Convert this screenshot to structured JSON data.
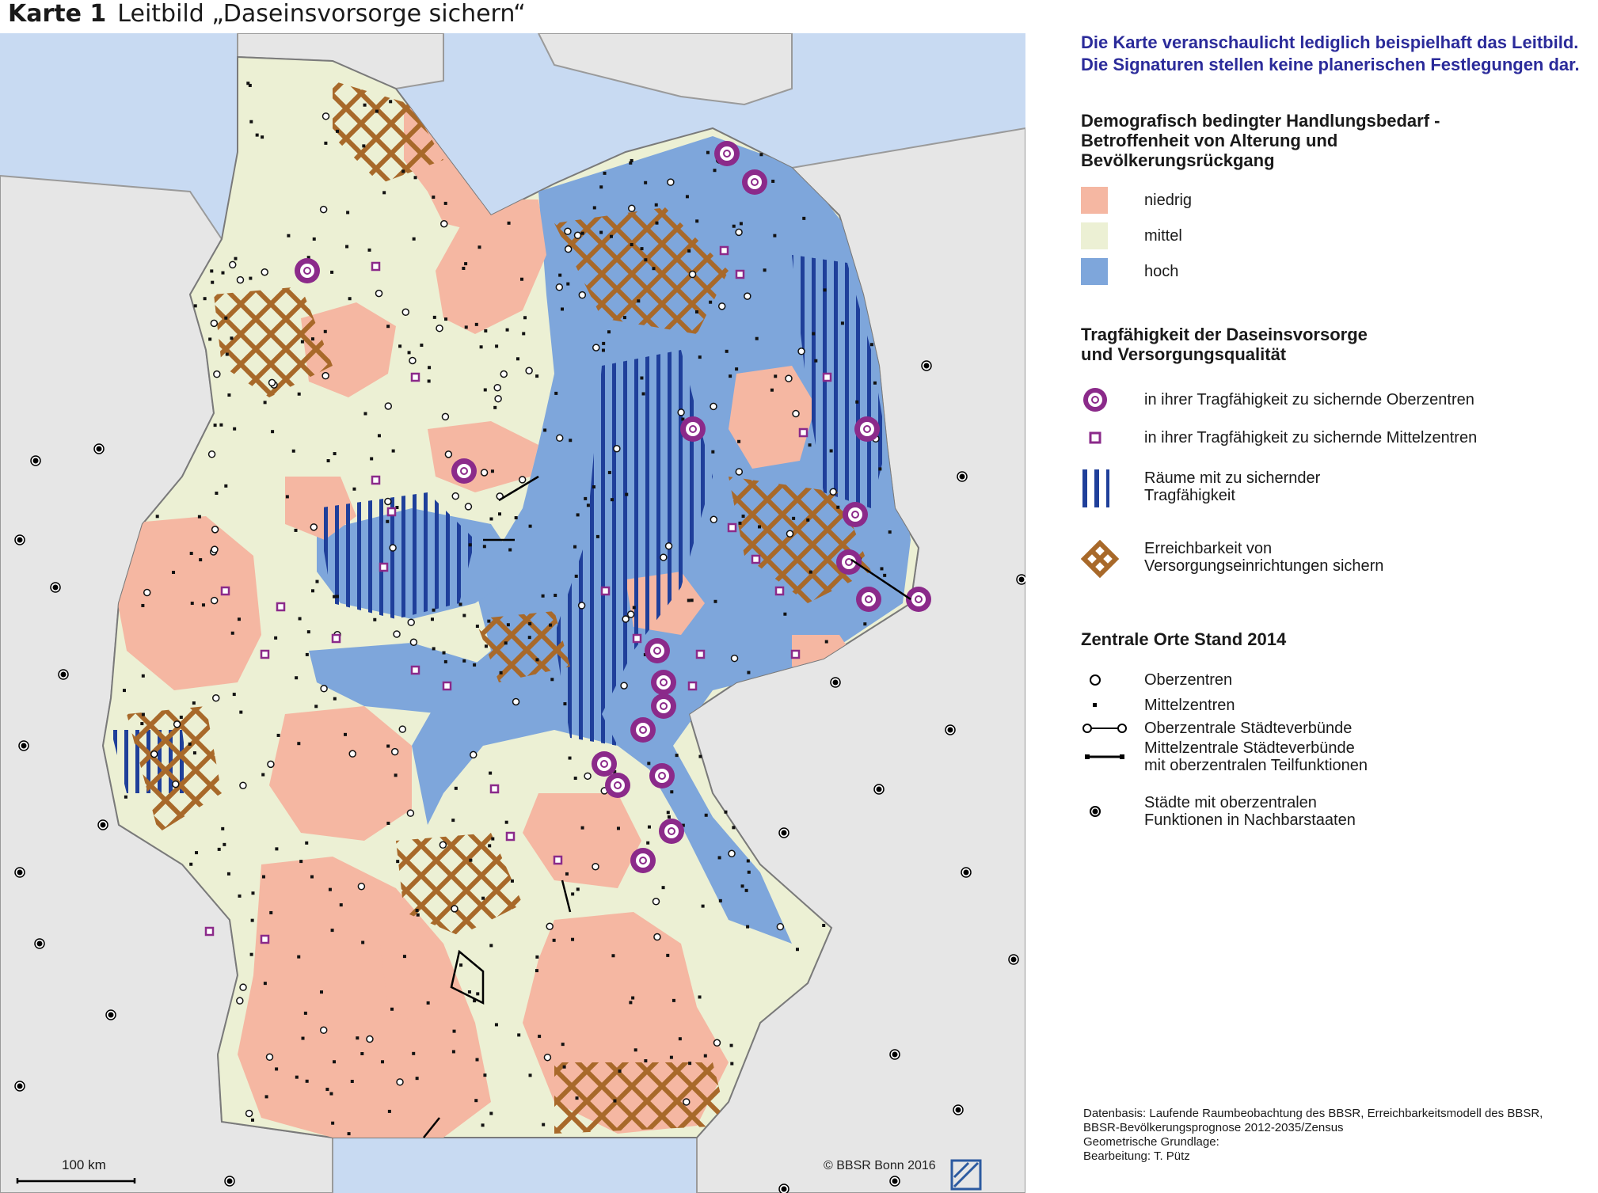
{
  "title": {
    "number": "Karte 1",
    "text": "Leitbild „Daseinsvorsorge sichern“"
  },
  "note": [
    "Die Karte veranschaulicht lediglich beispielhaft das Leitbild.",
    "Die Signaturen stellen keine planerischen Festlegungen dar."
  ],
  "legend": {
    "section1": {
      "heading": [
        "Demografisch bedingter Handlungsbedarf -",
        "Betroffenheit von Alterung und",
        "Bevölkerungsrückgang"
      ],
      "items": [
        {
          "label": "niedrig",
          "color": "#f5b7a2"
        },
        {
          "label": "mittel",
          "color": "#ecf0d4"
        },
        {
          "label": "hoch",
          "color": "#7ea6db"
        }
      ]
    },
    "section2": {
      "heading": [
        "Tragfähigkeit der Daseinsvorsorge",
        "und Versorgungsqualität"
      ],
      "items": [
        {
          "label": [
            "in ihrer Tragfähigkeit zu sichernde Oberzentren"
          ],
          "icon": "purple-ring-icon"
        },
        {
          "label": [
            "in ihrer Tragfähigkeit zu sichernde Mittelzentren"
          ],
          "icon": "purple-square-icon"
        },
        {
          "label": [
            "Räume mit zu sichernder",
            "Tragfähigkeit"
          ],
          "icon": "blue-stripes-icon"
        },
        {
          "label": [
            "Erreichbarkeit von",
            "Versorgungseinrichtungen sichern"
          ],
          "icon": "brown-crosshatch-icon"
        }
      ]
    },
    "section3": {
      "heading": [
        "Zentrale Orte Stand 2014"
      ],
      "items": [
        {
          "label": [
            "Oberzentren"
          ],
          "icon": "white-circle-icon"
        },
        {
          "label": [
            "Mittelzentren"
          ],
          "icon": "black-square-icon"
        },
        {
          "label": [
            "Oberzentrale Städteverbünde"
          ],
          "icon": "circle-link-icon"
        },
        {
          "label": [
            "Mittelzentrale Städteverbünde",
            "mit oberzentralen Teilfunktionen"
          ],
          "icon": "square-link-icon"
        },
        {
          "label": [
            "Städte mit oberzentralen",
            "Funktionen in Nachbarstaaten"
          ],
          "icon": "black-dot-circle-icon"
        }
      ]
    }
  },
  "colors": {
    "sea": "#c8daf2",
    "neighbor": "#e6e6e6",
    "border": "#9a9a9a",
    "accent_purple": "#8b2a8a",
    "stripe_blue": "#1f3f9a",
    "hatch_brown": "#a8692a"
  },
  "scale": {
    "label": "100 km"
  },
  "copyright": "© BBSR Bonn 2016",
  "credits": [
    "Datenbasis: Laufende Raumbeobachtung des BBSR, Erreichbarkeitsmodell des BBSR,",
    "BBSR-Bevölkerungsprognose 2012-2035/Zensus",
    "Geometrische Grundlage:",
    "Bearbeitung: T. Pütz"
  ]
}
